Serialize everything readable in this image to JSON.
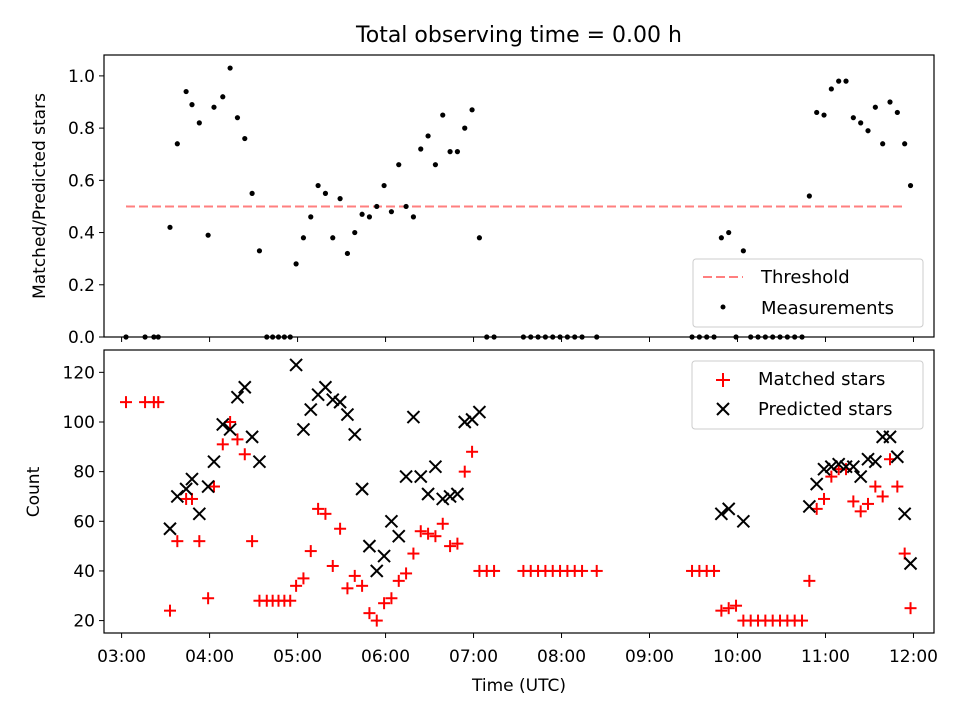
{
  "chart_data": [
    {
      "type": "scatter",
      "title": "Total observing time = 0.00 h",
      "ylabel": "Matched/Predicted stars",
      "xlabel": "",
      "xlim": [
        "02:48",
        "12:14"
      ],
      "ylim": [
        0,
        1.08
      ],
      "yticks": [
        0.0,
        0.2,
        0.4,
        0.6,
        0.8,
        1.0
      ],
      "ytick_labels": [
        "0.0",
        "0.2",
        "0.4",
        "0.6",
        "0.8",
        "1.0"
      ],
      "grid": false,
      "legend_position": "lower-right",
      "threshold": {
        "name": "Threshold",
        "y": 0.5,
        "x_range": [
          "03:03",
          "11:53"
        ],
        "color": "#ff7f7f",
        "style": "dashed"
      },
      "series": [
        {
          "name": "Measurements",
          "color": "#000000",
          "marker": "dot",
          "points": [
            [
              "03:03",
              0
            ],
            [
              "03:16",
              0
            ],
            [
              "03:22",
              0
            ],
            [
              "03:25",
              0
            ],
            [
              "03:33",
              0.42
            ],
            [
              "03:38",
              0.74
            ],
            [
              "03:44",
              0.94
            ],
            [
              "03:48",
              0.89
            ],
            [
              "03:53",
              0.82
            ],
            [
              "03:59",
              0.39
            ],
            [
              "04:03",
              0.88
            ],
            [
              "04:09",
              0.92
            ],
            [
              "04:14",
              1.03
            ],
            [
              "04:19",
              0.84
            ],
            [
              "04:24",
              0.76
            ],
            [
              "04:29",
              0.55
            ],
            [
              "04:34",
              0.33
            ],
            [
              "04:39",
              0
            ],
            [
              "04:43",
              0
            ],
            [
              "04:47",
              0
            ],
            [
              "04:51",
              0
            ],
            [
              "04:55",
              0
            ],
            [
              "04:59",
              0.28
            ],
            [
              "05:04",
              0.38
            ],
            [
              "05:09",
              0.46
            ],
            [
              "05:14",
              0.58
            ],
            [
              "05:19",
              0.55
            ],
            [
              "05:24",
              0.38
            ],
            [
              "05:29",
              0.53
            ],
            [
              "05:34",
              0.32
            ],
            [
              "05:39",
              0.4
            ],
            [
              "05:44",
              0.47
            ],
            [
              "05:49",
              0.46
            ],
            [
              "05:54",
              0.5
            ],
            [
              "05:59",
              0.58
            ],
            [
              "06:04",
              0.48
            ],
            [
              "06:09",
              0.66
            ],
            [
              "06:14",
              0.5
            ],
            [
              "06:19",
              0.46
            ],
            [
              "06:24",
              0.72
            ],
            [
              "06:29",
              0.77
            ],
            [
              "06:34",
              0.66
            ],
            [
              "06:39",
              0.85
            ],
            [
              "06:44",
              0.71
            ],
            [
              "06:49",
              0.71
            ],
            [
              "06:54",
              0.8
            ],
            [
              "06:59",
              0.87
            ],
            [
              "07:04",
              0.38
            ],
            [
              "07:09",
              0
            ],
            [
              "07:14",
              0
            ],
            [
              "07:34",
              0
            ],
            [
              "07:39",
              0
            ],
            [
              "07:44",
              0
            ],
            [
              "07:49",
              0
            ],
            [
              "07:54",
              0
            ],
            [
              "07:59",
              0
            ],
            [
              "08:04",
              0
            ],
            [
              "08:09",
              0
            ],
            [
              "08:14",
              0
            ],
            [
              "08:24",
              0
            ],
            [
              "09:29",
              0
            ],
            [
              "09:34",
              0
            ],
            [
              "09:39",
              0
            ],
            [
              "09:44",
              0
            ],
            [
              "09:49",
              0.38
            ],
            [
              "09:54",
              0.4
            ],
            [
              "09:59",
              0
            ],
            [
              "10:04",
              0.33
            ],
            [
              "10:09",
              0
            ],
            [
              "10:14",
              0
            ],
            [
              "10:19",
              0
            ],
            [
              "10:24",
              0
            ],
            [
              "10:29",
              0
            ],
            [
              "10:34",
              0
            ],
            [
              "10:39",
              0
            ],
            [
              "10:44",
              0
            ],
            [
              "10:49",
              0.54
            ],
            [
              "10:54",
              0.86
            ],
            [
              "10:59",
              0.85
            ],
            [
              "11:04",
              0.95
            ],
            [
              "11:09",
              0.98
            ],
            [
              "11:14",
              0.98
            ],
            [
              "11:19",
              0.84
            ],
            [
              "11:24",
              0.82
            ],
            [
              "11:29",
              0.79
            ],
            [
              "11:34",
              0.88
            ],
            [
              "11:39",
              0.74
            ],
            [
              "11:44",
              0.9
            ],
            [
              "11:49",
              0.86
            ],
            [
              "11:54",
              0.74
            ],
            [
              "11:58",
              0.58
            ]
          ]
        }
      ]
    },
    {
      "type": "scatter",
      "title": "",
      "xlabel": "Time (UTC)",
      "ylabel": "Count",
      "xlim": [
        "02:48",
        "12:14"
      ],
      "ylim": [
        15,
        129
      ],
      "yticks": [
        20,
        40,
        60,
        80,
        100,
        120
      ],
      "ytick_labels": [
        "20",
        "40",
        "60",
        "80",
        "100",
        "120"
      ],
      "xticks": [
        "03:00",
        "04:00",
        "05:00",
        "06:00",
        "07:00",
        "08:00",
        "09:00",
        "10:00",
        "11:00",
        "12:00"
      ],
      "grid": false,
      "legend_position": "upper-right",
      "series": [
        {
          "name": "Matched stars",
          "color": "#ff0000",
          "marker": "plus",
          "points": [
            [
              "03:03",
              108
            ],
            [
              "03:16",
              108
            ],
            [
              "03:22",
              108
            ],
            [
              "03:25",
              108
            ],
            [
              "03:33",
              24
            ],
            [
              "03:38",
              52
            ],
            [
              "03:44",
              69
            ],
            [
              "03:48",
              69
            ],
            [
              "03:53",
              52
            ],
            [
              "03:59",
              29
            ],
            [
              "04:03",
              74
            ],
            [
              "04:09",
              91
            ],
            [
              "04:14",
              100
            ],
            [
              "04:19",
              93
            ],
            [
              "04:24",
              87
            ],
            [
              "04:29",
              52
            ],
            [
              "04:34",
              28
            ],
            [
              "04:39",
              28
            ],
            [
              "04:43",
              28
            ],
            [
              "04:47",
              28
            ],
            [
              "04:51",
              28
            ],
            [
              "04:55",
              28
            ],
            [
              "04:59",
              34
            ],
            [
              "05:04",
              37
            ],
            [
              "05:09",
              48
            ],
            [
              "05:14",
              65
            ],
            [
              "05:19",
              63
            ],
            [
              "05:24",
              42
            ],
            [
              "05:29",
              57
            ],
            [
              "05:34",
              33
            ],
            [
              "05:39",
              38
            ],
            [
              "05:44",
              34
            ],
            [
              "05:49",
              23
            ],
            [
              "05:54",
              20
            ],
            [
              "05:59",
              27
            ],
            [
              "06:04",
              29
            ],
            [
              "06:09",
              36
            ],
            [
              "06:14",
              39
            ],
            [
              "06:19",
              47
            ],
            [
              "06:24",
              56
            ],
            [
              "06:29",
              55
            ],
            [
              "06:34",
              54
            ],
            [
              "06:39",
              59
            ],
            [
              "06:44",
              50
            ],
            [
              "06:49",
              51
            ],
            [
              "06:54",
              80
            ],
            [
              "06:59",
              88
            ],
            [
              "07:04",
              40
            ],
            [
              "07:09",
              40
            ],
            [
              "07:14",
              40
            ],
            [
              "07:34",
              40
            ],
            [
              "07:39",
              40
            ],
            [
              "07:44",
              40
            ],
            [
              "07:49",
              40
            ],
            [
              "07:54",
              40
            ],
            [
              "07:59",
              40
            ],
            [
              "08:04",
              40
            ],
            [
              "08:09",
              40
            ],
            [
              "08:14",
              40
            ],
            [
              "08:24",
              40
            ],
            [
              "09:29",
              40
            ],
            [
              "09:34",
              40
            ],
            [
              "09:39",
              40
            ],
            [
              "09:44",
              40
            ],
            [
              "09:49",
              24
            ],
            [
              "09:54",
              25
            ],
            [
              "09:59",
              26
            ],
            [
              "10:04",
              20
            ],
            [
              "10:09",
              20
            ],
            [
              "10:14",
              20
            ],
            [
              "10:19",
              20
            ],
            [
              "10:24",
              20
            ],
            [
              "10:29",
              20
            ],
            [
              "10:34",
              20
            ],
            [
              "10:39",
              20
            ],
            [
              "10:44",
              20
            ],
            [
              "10:49",
              36
            ],
            [
              "10:54",
              65
            ],
            [
              "10:59",
              69
            ],
            [
              "11:04",
              78
            ],
            [
              "11:09",
              81
            ],
            [
              "11:14",
              81
            ],
            [
              "11:19",
              68
            ],
            [
              "11:24",
              64
            ],
            [
              "11:29",
              67
            ],
            [
              "11:34",
              74
            ],
            [
              "11:39",
              70
            ],
            [
              "11:44",
              85
            ],
            [
              "11:49",
              74
            ],
            [
              "11:54",
              47
            ],
            [
              "11:58",
              25
            ]
          ]
        },
        {
          "name": "Predicted stars",
          "color": "#000000",
          "marker": "x",
          "points": [
            [
              "03:33",
              57
            ],
            [
              "03:38",
              70
            ],
            [
              "03:44",
              73
            ],
            [
              "03:48",
              77
            ],
            [
              "03:53",
              63
            ],
            [
              "03:59",
              74
            ],
            [
              "04:03",
              84
            ],
            [
              "04:09",
              99
            ],
            [
              "04:14",
              97
            ],
            [
              "04:19",
              110
            ],
            [
              "04:24",
              114
            ],
            [
              "04:29",
              94
            ],
            [
              "04:34",
              84
            ],
            [
              "04:59",
              123
            ],
            [
              "05:04",
              97
            ],
            [
              "05:09",
              105
            ],
            [
              "05:14",
              111
            ],
            [
              "05:19",
              114
            ],
            [
              "05:24",
              109
            ],
            [
              "05:29",
              108
            ],
            [
              "05:34",
              103
            ],
            [
              "05:39",
              95
            ],
            [
              "05:44",
              73
            ],
            [
              "05:49",
              50
            ],
            [
              "05:54",
              40
            ],
            [
              "05:59",
              46
            ],
            [
              "06:04",
              60
            ],
            [
              "06:09",
              54
            ],
            [
              "06:14",
              78
            ],
            [
              "06:19",
              102
            ],
            [
              "06:24",
              78
            ],
            [
              "06:29",
              71
            ],
            [
              "06:34",
              82
            ],
            [
              "06:39",
              69
            ],
            [
              "06:44",
              70
            ],
            [
              "06:49",
              71
            ],
            [
              "06:54",
              100
            ],
            [
              "06:59",
              101
            ],
            [
              "07:04",
              104
            ],
            [
              "09:49",
              63
            ],
            [
              "09:54",
              65
            ],
            [
              "10:04",
              60
            ],
            [
              "10:49",
              66
            ],
            [
              "10:54",
              75
            ],
            [
              "10:59",
              81
            ],
            [
              "11:04",
              82
            ],
            [
              "11:09",
              83
            ],
            [
              "11:14",
              82
            ],
            [
              "11:19",
              82
            ],
            [
              "11:24",
              78
            ],
            [
              "11:29",
              85
            ],
            [
              "11:34",
              84
            ],
            [
              "11:39",
              94
            ],
            [
              "11:44",
              94
            ],
            [
              "11:49",
              86
            ],
            [
              "11:54",
              63
            ],
            [
              "11:58",
              43
            ]
          ]
        }
      ]
    }
  ]
}
